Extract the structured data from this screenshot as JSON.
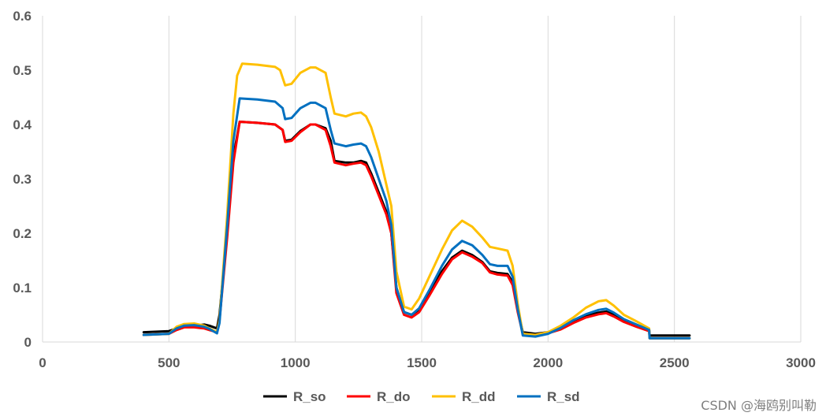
{
  "chart_data": {
    "type": "line",
    "title": "",
    "xlabel": "",
    "ylabel": "",
    "xlim": [
      0,
      3000
    ],
    "ylim": [
      0,
      0.6
    ],
    "xticks": [
      0,
      500,
      1000,
      1500,
      2000,
      2500,
      3000
    ],
    "yticks": [
      0,
      0.1,
      0.2,
      0.3,
      0.4,
      0.5,
      0.6
    ],
    "ytick_labels": [
      "0",
      "0.1",
      "0.2",
      "0.3",
      "0.4",
      "0.5",
      "0.6"
    ],
    "grid": "vertical",
    "legend_position": "bottom",
    "series": [
      {
        "name": "R_so",
        "color": "#000000",
        "points": [
          [
            400,
            0.018
          ],
          [
            500,
            0.02
          ],
          [
            530,
            0.025
          ],
          [
            560,
            0.03
          ],
          [
            600,
            0.03
          ],
          [
            640,
            0.032
          ],
          [
            660,
            0.03
          ],
          [
            690,
            0.025
          ],
          [
            700,
            0.05
          ],
          [
            730,
            0.2
          ],
          [
            755,
            0.34
          ],
          [
            780,
            0.405
          ],
          [
            850,
            0.403
          ],
          [
            920,
            0.4
          ],
          [
            950,
            0.39
          ],
          [
            960,
            0.37
          ],
          [
            985,
            0.372
          ],
          [
            1020,
            0.388
          ],
          [
            1060,
            0.4
          ],
          [
            1080,
            0.4
          ],
          [
            1120,
            0.393
          ],
          [
            1140,
            0.37
          ],
          [
            1155,
            0.333
          ],
          [
            1200,
            0.33
          ],
          [
            1230,
            0.33
          ],
          [
            1260,
            0.333
          ],
          [
            1280,
            0.33
          ],
          [
            1300,
            0.31
          ],
          [
            1330,
            0.275
          ],
          [
            1360,
            0.24
          ],
          [
            1380,
            0.2
          ],
          [
            1400,
            0.1
          ],
          [
            1430,
            0.055
          ],
          [
            1460,
            0.05
          ],
          [
            1490,
            0.06
          ],
          [
            1530,
            0.09
          ],
          [
            1580,
            0.13
          ],
          [
            1620,
            0.155
          ],
          [
            1660,
            0.168
          ],
          [
            1700,
            0.16
          ],
          [
            1740,
            0.147
          ],
          [
            1770,
            0.13
          ],
          [
            1800,
            0.127
          ],
          [
            1840,
            0.125
          ],
          [
            1860,
            0.11
          ],
          [
            1880,
            0.06
          ],
          [
            1900,
            0.018
          ],
          [
            1950,
            0.015
          ],
          [
            2000,
            0.018
          ],
          [
            2050,
            0.025
          ],
          [
            2100,
            0.038
          ],
          [
            2150,
            0.048
          ],
          [
            2200,
            0.054
          ],
          [
            2230,
            0.056
          ],
          [
            2260,
            0.05
          ],
          [
            2300,
            0.04
          ],
          [
            2350,
            0.03
          ],
          [
            2400,
            0.022
          ],
          [
            2402,
            0.012
          ],
          [
            2560,
            0.012
          ]
        ]
      },
      {
        "name": "R_do",
        "color": "#ff0000",
        "points": [
          [
            400,
            0.013
          ],
          [
            500,
            0.015
          ],
          [
            530,
            0.022
          ],
          [
            560,
            0.027
          ],
          [
            600,
            0.027
          ],
          [
            640,
            0.025
          ],
          [
            660,
            0.022
          ],
          [
            690,
            0.018
          ],
          [
            700,
            0.04
          ],
          [
            730,
            0.19
          ],
          [
            755,
            0.33
          ],
          [
            780,
            0.405
          ],
          [
            850,
            0.403
          ],
          [
            920,
            0.4
          ],
          [
            950,
            0.39
          ],
          [
            960,
            0.368
          ],
          [
            985,
            0.37
          ],
          [
            1020,
            0.386
          ],
          [
            1060,
            0.4
          ],
          [
            1080,
            0.4
          ],
          [
            1120,
            0.39
          ],
          [
            1140,
            0.36
          ],
          [
            1155,
            0.33
          ],
          [
            1200,
            0.325
          ],
          [
            1230,
            0.328
          ],
          [
            1260,
            0.33
          ],
          [
            1280,
            0.325
          ],
          [
            1300,
            0.305
          ],
          [
            1330,
            0.27
          ],
          [
            1360,
            0.235
          ],
          [
            1380,
            0.2
          ],
          [
            1400,
            0.09
          ],
          [
            1430,
            0.05
          ],
          [
            1460,
            0.045
          ],
          [
            1490,
            0.055
          ],
          [
            1530,
            0.085
          ],
          [
            1580,
            0.125
          ],
          [
            1620,
            0.152
          ],
          [
            1660,
            0.165
          ],
          [
            1700,
            0.157
          ],
          [
            1740,
            0.145
          ],
          [
            1770,
            0.128
          ],
          [
            1800,
            0.124
          ],
          [
            1840,
            0.122
          ],
          [
            1860,
            0.105
          ],
          [
            1880,
            0.055
          ],
          [
            1900,
            0.015
          ],
          [
            1950,
            0.012
          ],
          [
            2000,
            0.016
          ],
          [
            2050,
            0.023
          ],
          [
            2100,
            0.035
          ],
          [
            2150,
            0.045
          ],
          [
            2200,
            0.051
          ],
          [
            2230,
            0.053
          ],
          [
            2260,
            0.047
          ],
          [
            2300,
            0.037
          ],
          [
            2350,
            0.028
          ],
          [
            2400,
            0.02
          ],
          [
            2402,
            0.007
          ],
          [
            2560,
            0.007
          ]
        ]
      },
      {
        "name": "R_dd",
        "color": "#ffc000",
        "points": [
          [
            400,
            0.013
          ],
          [
            500,
            0.015
          ],
          [
            530,
            0.028
          ],
          [
            560,
            0.033
          ],
          [
            600,
            0.034
          ],
          [
            640,
            0.03
          ],
          [
            660,
            0.025
          ],
          [
            690,
            0.018
          ],
          [
            700,
            0.04
          ],
          [
            730,
            0.23
          ],
          [
            755,
            0.42
          ],
          [
            770,
            0.49
          ],
          [
            790,
            0.512
          ],
          [
            850,
            0.51
          ],
          [
            920,
            0.506
          ],
          [
            940,
            0.5
          ],
          [
            960,
            0.472
          ],
          [
            985,
            0.475
          ],
          [
            1020,
            0.495
          ],
          [
            1060,
            0.505
          ],
          [
            1080,
            0.505
          ],
          [
            1120,
            0.495
          ],
          [
            1140,
            0.45
          ],
          [
            1155,
            0.42
          ],
          [
            1200,
            0.415
          ],
          [
            1230,
            0.42
          ],
          [
            1260,
            0.422
          ],
          [
            1280,
            0.415
          ],
          [
            1300,
            0.395
          ],
          [
            1330,
            0.35
          ],
          [
            1360,
            0.29
          ],
          [
            1380,
            0.25
          ],
          [
            1400,
            0.13
          ],
          [
            1430,
            0.065
          ],
          [
            1460,
            0.06
          ],
          [
            1490,
            0.08
          ],
          [
            1530,
            0.12
          ],
          [
            1580,
            0.17
          ],
          [
            1620,
            0.205
          ],
          [
            1660,
            0.223
          ],
          [
            1700,
            0.212
          ],
          [
            1740,
            0.192
          ],
          [
            1770,
            0.175
          ],
          [
            1800,
            0.172
          ],
          [
            1840,
            0.168
          ],
          [
            1860,
            0.14
          ],
          [
            1880,
            0.07
          ],
          [
            1900,
            0.015
          ],
          [
            1950,
            0.013
          ],
          [
            2000,
            0.018
          ],
          [
            2050,
            0.03
          ],
          [
            2100,
            0.045
          ],
          [
            2150,
            0.063
          ],
          [
            2200,
            0.075
          ],
          [
            2230,
            0.077
          ],
          [
            2260,
            0.067
          ],
          [
            2300,
            0.05
          ],
          [
            2350,
            0.038
          ],
          [
            2400,
            0.025
          ],
          [
            2402,
            0.007
          ],
          [
            2560,
            0.007
          ]
        ]
      },
      {
        "name": "R_sd",
        "color": "#0070c0",
        "points": [
          [
            400,
            0.013
          ],
          [
            500,
            0.015
          ],
          [
            530,
            0.025
          ],
          [
            560,
            0.03
          ],
          [
            600,
            0.031
          ],
          [
            640,
            0.028
          ],
          [
            660,
            0.024
          ],
          [
            690,
            0.016
          ],
          [
            700,
            0.035
          ],
          [
            730,
            0.21
          ],
          [
            755,
            0.37
          ],
          [
            780,
            0.448
          ],
          [
            850,
            0.446
          ],
          [
            920,
            0.442
          ],
          [
            950,
            0.43
          ],
          [
            960,
            0.41
          ],
          [
            985,
            0.412
          ],
          [
            1020,
            0.43
          ],
          [
            1060,
            0.44
          ],
          [
            1080,
            0.44
          ],
          [
            1120,
            0.43
          ],
          [
            1140,
            0.39
          ],
          [
            1155,
            0.365
          ],
          [
            1200,
            0.36
          ],
          [
            1230,
            0.363
          ],
          [
            1260,
            0.365
          ],
          [
            1280,
            0.36
          ],
          [
            1300,
            0.34
          ],
          [
            1330,
            0.3
          ],
          [
            1360,
            0.26
          ],
          [
            1380,
            0.215
          ],
          [
            1400,
            0.1
          ],
          [
            1430,
            0.055
          ],
          [
            1460,
            0.05
          ],
          [
            1490,
            0.062
          ],
          [
            1530,
            0.095
          ],
          [
            1580,
            0.14
          ],
          [
            1620,
            0.17
          ],
          [
            1660,
            0.186
          ],
          [
            1700,
            0.178
          ],
          [
            1740,
            0.16
          ],
          [
            1770,
            0.143
          ],
          [
            1800,
            0.14
          ],
          [
            1840,
            0.14
          ],
          [
            1860,
            0.12
          ],
          [
            1880,
            0.06
          ],
          [
            1900,
            0.012
          ],
          [
            1950,
            0.01
          ],
          [
            2000,
            0.015
          ],
          [
            2050,
            0.026
          ],
          [
            2100,
            0.04
          ],
          [
            2150,
            0.051
          ],
          [
            2200,
            0.059
          ],
          [
            2230,
            0.061
          ],
          [
            2260,
            0.054
          ],
          [
            2300,
            0.042
          ],
          [
            2350,
            0.032
          ],
          [
            2400,
            0.022
          ],
          [
            2402,
            0.007
          ],
          [
            2560,
            0.007
          ]
        ]
      }
    ]
  },
  "watermark": "CSDN @海鸥别叫勒"
}
